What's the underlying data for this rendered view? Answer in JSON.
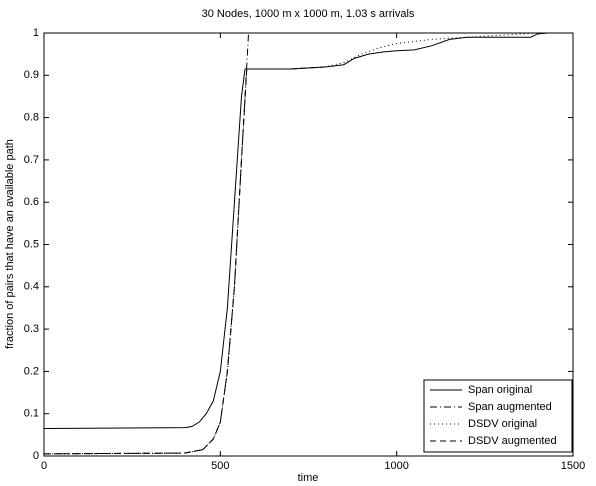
{
  "chart_data": {
    "type": "line",
    "title": "30 Nodes, 1000 m x 1000 m, 1.03 s arrivals",
    "x_label": "time",
    "y_label": "fraction of pairs that have an available path",
    "xlim": [
      0,
      1500
    ],
    "xticks": [
      0,
      500,
      1000,
      1500
    ],
    "ylim": [
      0,
      1
    ],
    "yticks": [
      0,
      0.1,
      0.2,
      0.3,
      0.4,
      0.5,
      0.6,
      0.7,
      0.8,
      0.9,
      1
    ],
    "legend": "lower right",
    "series": [
      {
        "name": "Span original",
        "color": "#000000",
        "linestyle": "solid",
        "x": [
          0,
          400,
          420,
          440,
          460,
          480,
          500,
          520,
          540,
          560,
          570,
          600,
          700,
          800,
          850,
          880,
          920,
          960,
          1000,
          1050,
          1100,
          1150,
          1200,
          1300,
          1380,
          1400,
          1430
        ],
        "values": [
          0.065,
          0.067,
          0.07,
          0.08,
          0.1,
          0.13,
          0.2,
          0.35,
          0.6,
          0.85,
          0.915,
          0.915,
          0.915,
          0.92,
          0.925,
          0.94,
          0.95,
          0.955,
          0.958,
          0.96,
          0.97,
          0.985,
          0.99,
          0.99,
          0.99,
          0.998,
          1
        ]
      },
      {
        "name": "Span augmented",
        "color": "#000000",
        "linestyle": "dashdot",
        "x": [
          0,
          400,
          450,
          480,
          500,
          520,
          540,
          560,
          570,
          580
        ],
        "values": [
          0.005,
          0.007,
          0.015,
          0.04,
          0.08,
          0.2,
          0.4,
          0.7,
          0.85,
          1
        ]
      },
      {
        "name": "DSDV original",
        "color": "#000000",
        "linestyle": "dotted",
        "x": [
          0,
          400,
          450,
          480,
          500,
          520,
          540,
          560,
          575,
          700,
          800,
          850,
          900,
          950,
          1000,
          1100,
          1200,
          1300,
          1400
        ],
        "values": [
          0.005,
          0.007,
          0.015,
          0.04,
          0.08,
          0.2,
          0.4,
          0.7,
          0.915,
          0.915,
          0.92,
          0.93,
          0.95,
          0.965,
          0.975,
          0.985,
          0.99,
          0.995,
          1
        ]
      },
      {
        "name": "DSDV augmented",
        "color": "#000000",
        "linestyle": "dashed",
        "x": [
          0,
          400,
          450,
          480,
          500,
          520,
          540,
          560,
          575,
          700,
          800
        ],
        "values": [
          0.005,
          0.007,
          0.015,
          0.04,
          0.08,
          0.2,
          0.4,
          0.7,
          0.915,
          0.915,
          0.92
        ]
      }
    ]
  }
}
